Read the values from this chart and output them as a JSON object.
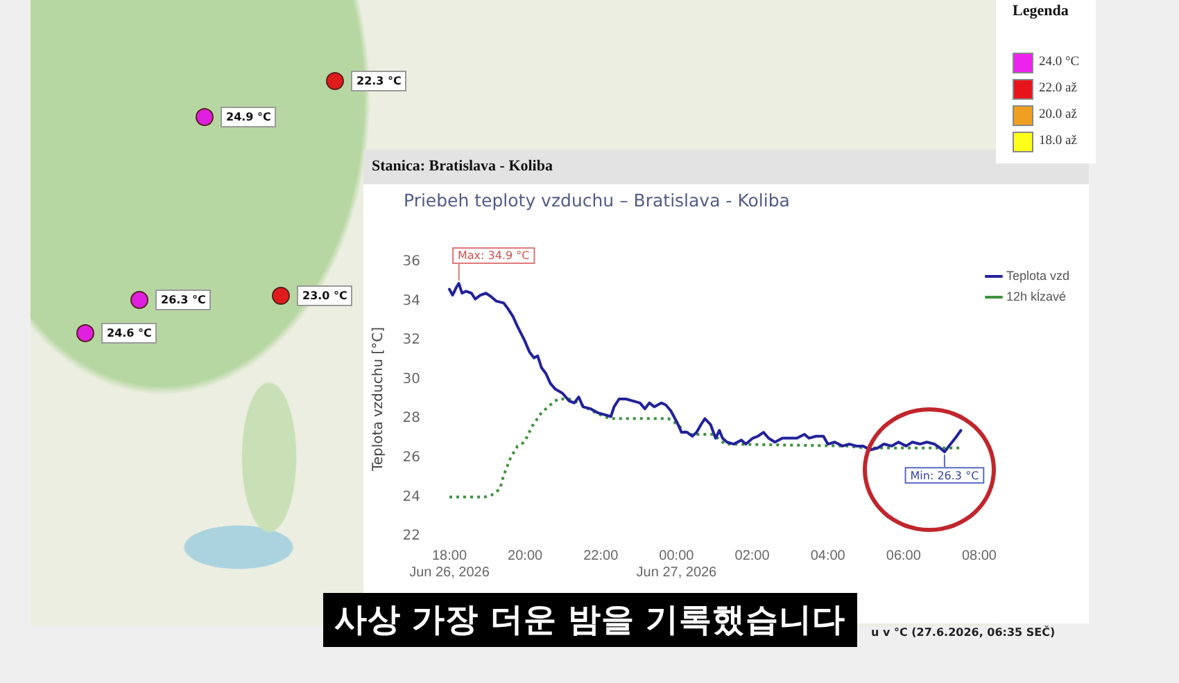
{
  "chart_data": [
    {
      "type": "line",
      "title": "Priebeh teploty vzduchu – Bratislava - Koliba",
      "ylabel": "Teplota vzduchu [°C]",
      "legend": "top right",
      "xlim": [
        "2026-06-26T18:00",
        "2026-06-27T08:00"
      ],
      "xticks": [
        {
          "value": "2026-06-26T18:00",
          "label": "18:00\nJun 26, 2026"
        },
        {
          "value": "2026-06-26T20:00",
          "label": "20:00"
        },
        {
          "value": "2026-06-26T22:00",
          "label": "22:00"
        },
        {
          "value": "2026-06-27T00:00",
          "label": "00:00\nJun 27, 2026"
        },
        {
          "value": "2026-06-27T02:00",
          "label": "02:00"
        },
        {
          "value": "2026-06-27T04:00",
          "label": "04:00"
        },
        {
          "value": "2026-06-27T06:00",
          "label": "06:00"
        },
        {
          "value": "2026-06-27T08:00",
          "label": "08:00"
        }
      ],
      "ylim": [
        22,
        36
      ],
      "yticks": [
        22,
        24,
        26,
        28,
        30,
        32,
        34,
        36
      ],
      "series": [
        {
          "name": "Teplota vzd",
          "color": "#22229a",
          "x": [
            "2026-06-26T18:00",
            "2026-06-26T18:05",
            "2026-06-26T18:11",
            "2026-06-26T18:15",
            "2026-06-26T18:20",
            "2026-06-26T18:26",
            "2026-06-26T18:35",
            "2026-06-26T18:41",
            "2026-06-26T18:49",
            "2026-06-26T18:58",
            "2026-06-26T19:07",
            "2026-06-26T19:14",
            "2026-06-26T19:26",
            "2026-06-26T19:33",
            "2026-06-26T19:41",
            "2026-06-26T19:48",
            "2026-06-26T19:59",
            "2026-06-26T20:07",
            "2026-06-26T20:14",
            "2026-06-26T20:20",
            "2026-06-26T20:26",
            "2026-06-26T20:33",
            "2026-06-26T20:40",
            "2026-06-26T20:48",
            "2026-06-26T20:59",
            "2026-06-26T21:10",
            "2026-06-26T21:18",
            "2026-06-26T21:25",
            "2026-06-26T21:32",
            "2026-06-26T21:44",
            "2026-06-26T21:55",
            "2026-06-26T22:06",
            "2026-06-26T22:16",
            "2026-06-26T22:21",
            "2026-06-26T22:29",
            "2026-06-26T22:40",
            "2026-06-26T22:51",
            "2026-06-26T23:02",
            "2026-06-26T23:10",
            "2026-06-26T23:17",
            "2026-06-26T23:25",
            "2026-06-26T23:36",
            "2026-06-26T23:43",
            "2026-06-26T23:51",
            "2026-06-27T00:01",
            "2026-06-27T00:08",
            "2026-06-27T00:17",
            "2026-06-27T00:25",
            "2026-06-27T00:32",
            "2026-06-27T00:39",
            "2026-06-27T00:45",
            "2026-06-27T00:54",
            "2026-06-27T01:02",
            "2026-06-27T01:08",
            "2026-06-27T01:13",
            "2026-06-27T01:20",
            "2026-06-27T01:31",
            "2026-06-27T01:43",
            "2026-06-27T01:50",
            "2026-06-27T02:01",
            "2026-06-27T02:09",
            "2026-06-27T02:18",
            "2026-06-27T02:26",
            "2026-06-27T02:36",
            "2026-06-27T02:48",
            "2026-06-27T03:00",
            "2026-06-27T03:11",
            "2026-06-27T03:23",
            "2026-06-27T03:30",
            "2026-06-27T03:41",
            "2026-06-27T03:53",
            "2026-06-27T04:00",
            "2026-06-27T04:11",
            "2026-06-27T04:23",
            "2026-06-27T04:34",
            "2026-06-27T04:45",
            "2026-06-27T04:56",
            "2026-06-27T05:07",
            "2026-06-27T05:19",
            "2026-06-27T05:29",
            "2026-06-27T05:41",
            "2026-06-27T05:52",
            "2026-06-27T06:04",
            "2026-06-27T06:14",
            "2026-06-27T06:26",
            "2026-06-27T06:37",
            "2026-06-27T06:49",
            "2026-06-27T06:58",
            "2026-06-27T07:05",
            "2026-06-27T07:12",
            "2026-06-27T07:22",
            "2026-06-27T07:31"
          ],
          "values": [
            34.6,
            34.3,
            34.7,
            34.9,
            34.4,
            34.5,
            34.4,
            34.1,
            34.3,
            34.4,
            34.2,
            34.0,
            33.9,
            33.6,
            33.2,
            32.7,
            32.0,
            31.4,
            31.1,
            31.2,
            30.6,
            30.3,
            29.8,
            29.5,
            29.3,
            28.9,
            28.8,
            29.1,
            28.6,
            28.5,
            28.3,
            28.2,
            28.1,
            28.6,
            29.0,
            29.0,
            28.9,
            28.8,
            28.5,
            28.8,
            28.6,
            28.8,
            28.7,
            28.4,
            27.8,
            27.3,
            27.3,
            27.1,
            27.3,
            27.7,
            28.0,
            27.7,
            27.0,
            27.4,
            27.0,
            26.8,
            26.7,
            26.9,
            26.7,
            27.0,
            27.1,
            27.3,
            27.0,
            26.8,
            27.0,
            27.0,
            27.0,
            27.2,
            27.0,
            27.1,
            27.1,
            26.7,
            26.8,
            26.6,
            26.7,
            26.6,
            26.6,
            26.4,
            26.5,
            26.7,
            26.6,
            26.8,
            26.6,
            26.8,
            26.7,
            26.8,
            26.7,
            26.5,
            26.3,
            26.6,
            27.0,
            27.4
          ]
        },
        {
          "name": "12h kĺzavé",
          "color": "#3f913f",
          "line_style": "dotted",
          "x": [
            "2026-06-26T18:00",
            "2026-06-26T18:56",
            "2026-06-26T19:07",
            "2026-06-26T19:20",
            "2026-06-26T19:26",
            "2026-06-26T19:37",
            "2026-06-26T19:48",
            "2026-06-26T19:59",
            "2026-06-26T20:11",
            "2026-06-26T20:26",
            "2026-06-26T20:40",
            "2026-06-26T20:52",
            "2026-06-26T21:10",
            "2026-06-26T21:25",
            "2026-06-26T21:40",
            "2026-06-26T21:59",
            "2026-06-26T22:14",
            "2026-06-26T23:47",
            "2026-06-27T00:02",
            "2026-06-27T00:17",
            "2026-06-27T00:58",
            "2026-06-27T01:17",
            "2026-06-27T04:30",
            "2026-06-27T05:00",
            "2026-06-27T07:32"
          ],
          "values": [
            24.0,
            24.0,
            24.1,
            24.4,
            25.1,
            26.0,
            26.6,
            26.8,
            27.6,
            28.3,
            28.7,
            29.0,
            29.0,
            28.8,
            28.5,
            28.2,
            28.0,
            28.0,
            27.7,
            27.2,
            27.2,
            26.7,
            26.6,
            26.5,
            26.5
          ]
        }
      ],
      "annotations": [
        "Stanica: Bratislava - Koliba",
        {
          "text": "Max: 34.9 °C",
          "x": "2026-06-26T18:15",
          "y": 34.9
        },
        {
          "text": "Min: 26.3 °C",
          "x": "2026-06-27T07:05",
          "y": 26.3
        },
        "u v °C (27.6.2026, 06:35 SEČ)",
        "사상 가장 더운 밤을 기록했습니다",
        "Legenda",
        "24.0 °C",
        "22.0 až",
        "20.0 až",
        "18.0 až"
      ]
    },
    {
      "type": "other",
      "categories": [
        "22.3 °C",
        "24.9 °C",
        "26.3 °C",
        "23.0 °C",
        "24.6 °C"
      ],
      "colors": [
        "#e01b1b",
        "#e020e0",
        "#e020e0",
        "#e01b1b",
        "#e020e0"
      ]
    }
  ]
}
